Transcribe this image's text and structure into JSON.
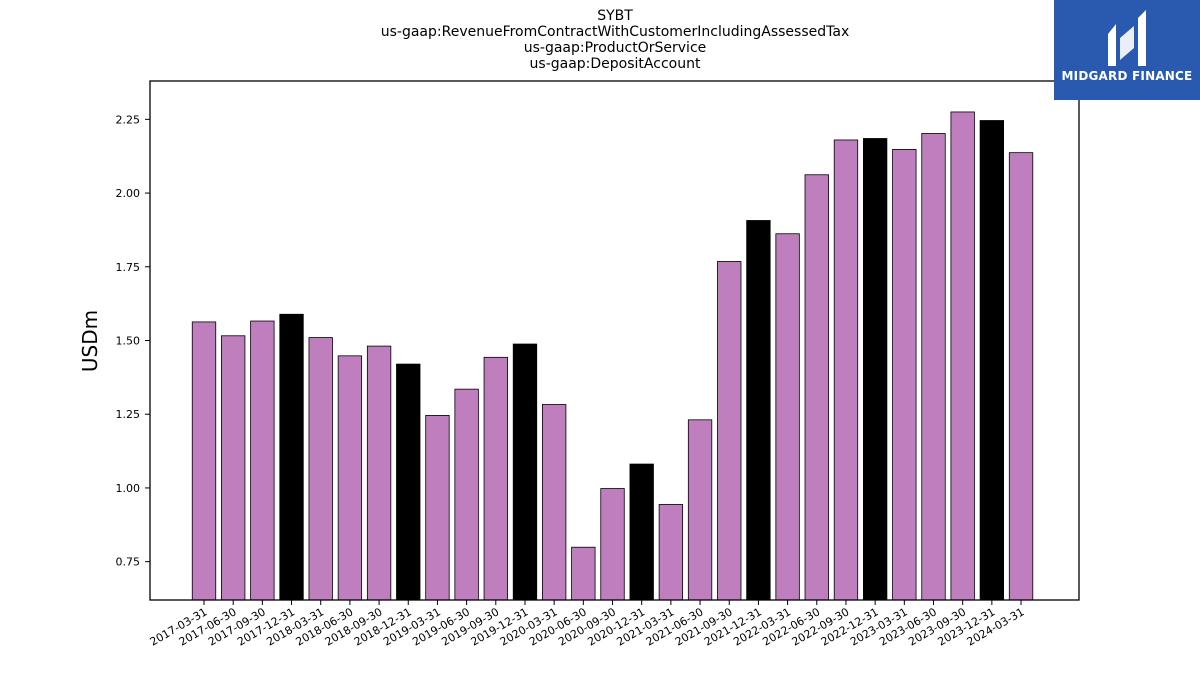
{
  "logo": {
    "name": "MIDGARD FINANCE",
    "icon": "midgard-logo-icon"
  },
  "chart_data": {
    "type": "bar",
    "title_lines": [
      "SYBT",
      "us-gaap:RevenueFromContractWithCustomerIncludingAssessedTax",
      "us-gaap:ProductOrService",
      "us-gaap:DepositAccount"
    ],
    "xlabel": "",
    "ylabel": "USDm",
    "ylim": [
      0.62,
      2.38
    ],
    "yticks": [
      "0.75",
      "1.00",
      "1.25",
      "1.50",
      "1.75",
      "2.00",
      "2.25"
    ],
    "grid": false,
    "colors": {
      "quarter": "#bf7fbf",
      "year_end": "#000000",
      "edge": "#000000"
    },
    "categories": [
      "2017-03-31",
      "2017-06-30",
      "2017-09-30",
      "2017-12-31",
      "2018-03-31",
      "2018-06-30",
      "2018-09-30",
      "2018-12-31",
      "2019-03-31",
      "2019-06-30",
      "2019-09-30",
      "2019-12-31",
      "2020-03-31",
      "2020-06-30",
      "2020-09-30",
      "2020-12-31",
      "2021-03-31",
      "2021-06-30",
      "2021-09-30",
      "2021-12-31",
      "2022-03-31",
      "2022-06-30",
      "2022-09-30",
      "2022-12-31",
      "2023-03-31",
      "2023-06-30",
      "2023-09-30",
      "2023-12-31",
      "2024-03-31"
    ],
    "values": [
      1.563,
      1.516,
      1.566,
      1.589,
      1.51,
      1.448,
      1.481,
      1.42,
      1.246,
      1.335,
      1.443,
      1.488,
      1.283,
      0.799,
      0.998,
      1.081,
      0.944,
      1.231,
      1.768,
      1.907,
      1.862,
      2.062,
      2.18,
      2.185,
      2.148,
      2.202,
      2.275,
      2.246,
      2.137
    ],
    "year_end": [
      false,
      false,
      false,
      true,
      false,
      false,
      false,
      true,
      false,
      false,
      false,
      true,
      false,
      false,
      false,
      true,
      false,
      false,
      false,
      true,
      false,
      false,
      false,
      true,
      false,
      false,
      false,
      true,
      false
    ]
  }
}
